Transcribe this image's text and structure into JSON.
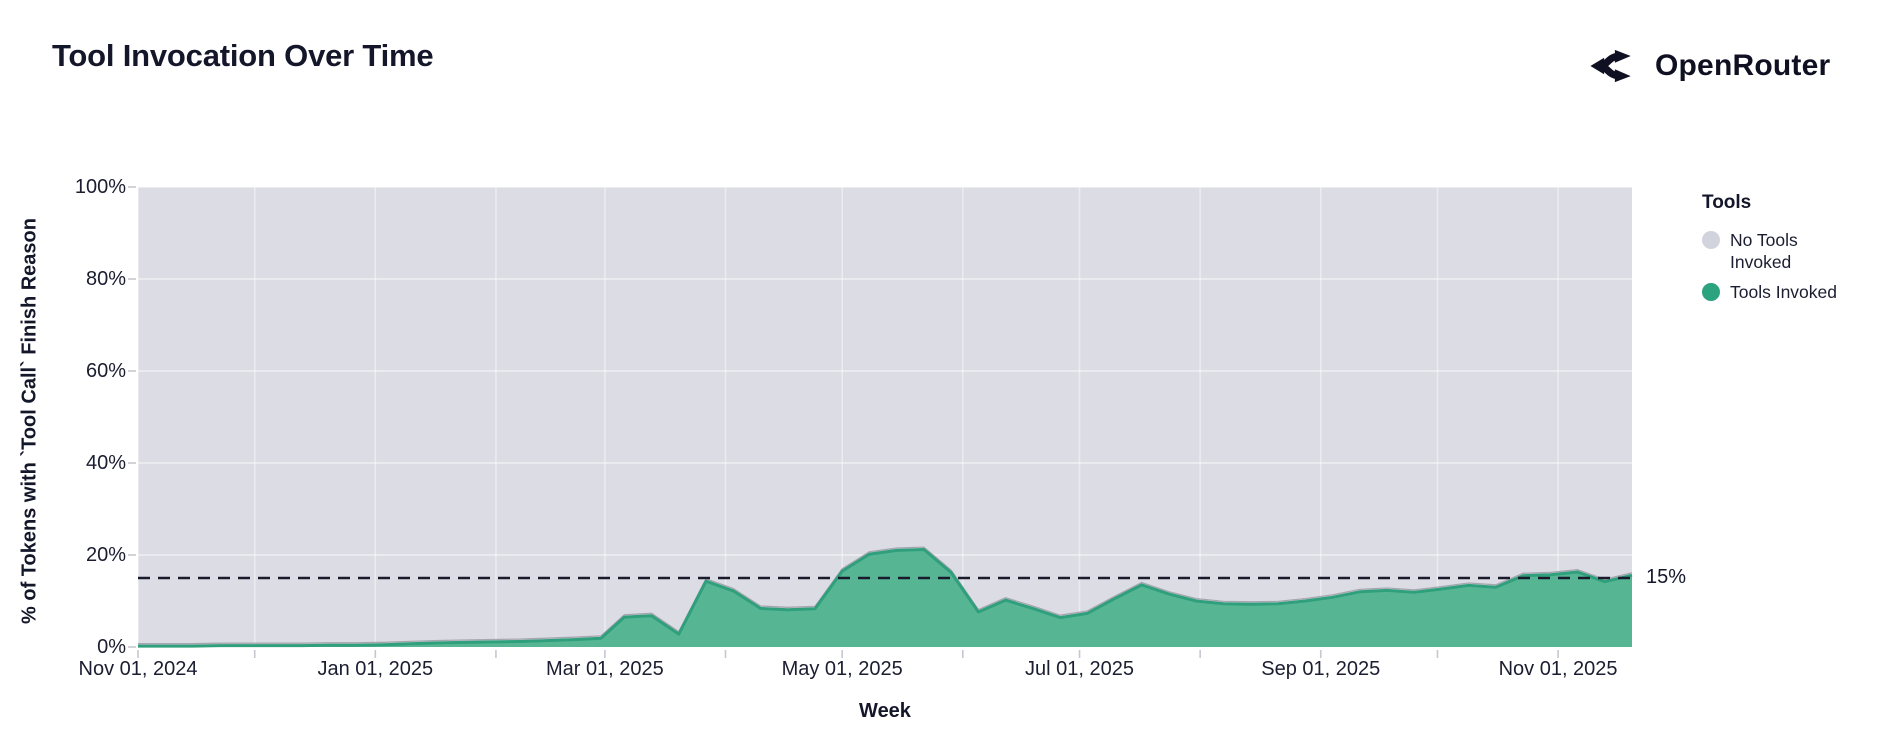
{
  "header": {
    "title": "Tool Invocation Over Time",
    "brand": "OpenRouter"
  },
  "legend": {
    "title": "Tools",
    "items": [
      {
        "label": "No Tools Invoked",
        "color": "#d2d3dd"
      },
      {
        "label": "Tools Invoked",
        "color": "#2aa37e"
      }
    ]
  },
  "annotation": {
    "label": "15%",
    "value": 15
  },
  "axes": {
    "x": {
      "title": "Week",
      "tick_labels": [
        "Nov 01, 2024",
        "Jan 01, 2025",
        "Mar 01, 2025",
        "May 01, 2025",
        "Jul 01, 2025",
        "Sep 01, 2025",
        "Nov 01, 2025"
      ],
      "tick_dates": [
        "2024-11-01",
        "2025-01-01",
        "2025-03-01",
        "2025-05-01",
        "2025-07-01",
        "2025-09-01",
        "2025-11-01"
      ]
    },
    "y": {
      "title": "% of Tokens with `Tool Call` Finish Reason",
      "tick_labels": [
        "0%",
        "20%",
        "40%",
        "60%",
        "80%",
        "100%"
      ],
      "tick_values": [
        0,
        20,
        40,
        60,
        80,
        100
      ],
      "range": [
        0,
        100
      ]
    }
  },
  "chart_data": {
    "type": "area",
    "stacked_to_100_percent": true,
    "title": "Tool Invocation Over Time",
    "xlabel": "Week",
    "ylabel": "% of Tokens with `Tool Call` Finish Reason",
    "ylim": [
      0,
      100
    ],
    "legend_position": "right",
    "grid": "on",
    "reference_line": {
      "y": 15,
      "style": "dashed",
      "label": "15%"
    },
    "x": [
      "2024-11-01",
      "2024-11-08",
      "2024-11-15",
      "2024-11-22",
      "2024-11-29",
      "2024-12-06",
      "2024-12-13",
      "2024-12-20",
      "2024-12-27",
      "2025-01-03",
      "2025-01-10",
      "2025-01-17",
      "2025-01-24",
      "2025-01-31",
      "2025-02-07",
      "2025-02-14",
      "2025-02-21",
      "2025-02-28",
      "2025-03-06",
      "2025-03-13",
      "2025-03-20",
      "2025-03-27",
      "2025-04-03",
      "2025-04-10",
      "2025-04-17",
      "2025-04-24",
      "2025-05-01",
      "2025-05-08",
      "2025-05-15",
      "2025-05-22",
      "2025-05-29",
      "2025-06-05",
      "2025-06-12",
      "2025-06-19",
      "2025-06-26",
      "2025-07-03",
      "2025-07-10",
      "2025-07-17",
      "2025-07-24",
      "2025-07-31",
      "2025-08-07",
      "2025-08-14",
      "2025-08-21",
      "2025-08-28",
      "2025-09-04",
      "2025-09-11",
      "2025-09-18",
      "2025-09-25",
      "2025-10-02",
      "2025-10-09",
      "2025-10-16",
      "2025-10-23",
      "2025-10-30",
      "2025-11-06",
      "2025-11-13",
      "2025-11-20"
    ],
    "series": [
      {
        "name": "Tools Invoked",
        "color": "#56b694",
        "values": [
          0.2,
          0.2,
          0.2,
          0.3,
          0.3,
          0.3,
          0.3,
          0.4,
          0.4,
          0.5,
          0.7,
          0.9,
          1.0,
          1.1,
          1.2,
          1.4,
          1.6,
          1.9,
          6.5,
          6.8,
          2.8,
          14.3,
          12.2,
          8.4,
          8.1,
          8.3,
          16.5,
          20.2,
          21.0,
          21.2,
          16.2,
          7.6,
          10.2,
          8.4,
          6.4,
          7.3,
          10.5,
          13.5,
          11.5,
          10.0,
          9.4,
          9.3,
          9.4,
          10.0,
          10.8,
          12.0,
          12.3,
          11.9,
          12.6,
          13.4,
          13.0,
          15.5,
          15.7,
          16.3,
          14.2,
          15.6
        ]
      },
      {
        "name": "No Tools Invoked",
        "color": "#dcdde4",
        "values_note": "remainder to 100%"
      }
    ]
  },
  "theme": {
    "plot_bg": "#dcdde4",
    "area_fill": "#56b694",
    "area_stroke": "#2f9f7c",
    "cap_stroke": "#9ea0aa",
    "grid_color": "#ffffff",
    "dashed_color": "#191b2c",
    "tick_color": "#c6c7cf",
    "ink": "#14162a"
  }
}
